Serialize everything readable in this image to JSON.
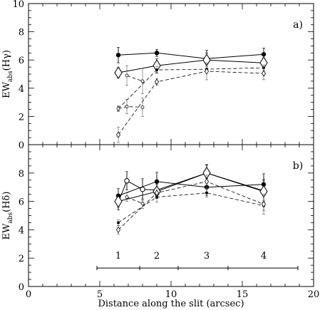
{
  "chart_data": [
    {
      "panel": "a)",
      "type": "line",
      "ylabel_main": "EW",
      "ylabel_sub": "abs",
      "ylabel_tail": "(Hγ)",
      "ylim": [
        0,
        10
      ],
      "yticks": [
        "0",
        "2",
        "4",
        "6",
        "8",
        "10"
      ],
      "xlim": [
        0,
        20
      ],
      "series": [
        {
          "style": "solid",
          "marker": "filled-circle",
          "x": [
            6.3,
            9.0,
            12.5,
            16.5
          ],
          "y": [
            6.35,
            6.5,
            6.1,
            6.4
          ],
          "err": [
            0.55,
            0.25,
            0.4,
            0.45
          ]
        },
        {
          "style": "solid",
          "marker": "open-diamond",
          "x": [
            6.3,
            9.0,
            12.5,
            16.5
          ],
          "y": [
            5.1,
            5.6,
            6.0,
            5.8
          ],
          "err": [
            0.35,
            0.5,
            0.7,
            0.35
          ]
        },
        {
          "style": "dashed",
          "marker": "open-circle-small",
          "x": [
            6.9,
            8.0
          ],
          "y": [
            4.9,
            4.5
          ],
          "err": [
            0.7,
            0.9
          ]
        },
        {
          "style": "dashed",
          "marker": "small-dot",
          "x": [
            6.3,
            9.0,
            12.5,
            16.5
          ],
          "y": [
            2.55,
            5.3,
            5.35,
            5.45
          ],
          "err": [
            0.15,
            0.25,
            0.2,
            0.2
          ]
        },
        {
          "style": "dashed",
          "marker": "open-diamond-small",
          "x": [
            6.3,
            9.0,
            12.5,
            16.5
          ],
          "y": [
            0.7,
            4.45,
            5.2,
            5.05
          ],
          "err": [
            0.55,
            0.25,
            0.6,
            0.45
          ]
        },
        {
          "style": "dashed",
          "marker": "open-circle-small",
          "x": [
            6.3,
            6.9,
            8.0
          ],
          "y": [
            2.55,
            2.7,
            2.65
          ],
          "err": [
            0.2,
            0.5,
            0.65
          ]
        }
      ]
    },
    {
      "panel": "b)",
      "type": "line",
      "xlabel": "Distance along the slit (arcsec)",
      "ylabel_main": "EW",
      "ylabel_sub": "abs",
      "ylabel_tail": "(Hδ)",
      "ylim": [
        0,
        10
      ],
      "yticks": [
        "0",
        "2",
        "4",
        "6",
        "8"
      ],
      "xlim": [
        0,
        20
      ],
      "xticks": [
        "0",
        "5",
        "10",
        "15",
        "20"
      ],
      "series": [
        {
          "style": "solid",
          "marker": "filled-circle",
          "x": [
            6.3,
            9.0,
            12.5,
            16.5
          ],
          "y": [
            6.4,
            7.4,
            7.0,
            7.2
          ],
          "err": [
            0.5,
            0.65,
            0.6,
            0.75
          ]
        },
        {
          "style": "solid",
          "marker": "open-circle",
          "x": [
            6.3,
            6.9,
            8.0,
            9.0,
            12.5,
            16.5
          ],
          "y": [
            5.95,
            7.45,
            6.85,
            6.8,
            8.0,
            6.75
          ],
          "err": [
            0.55,
            0.65,
            0.75,
            0.6,
            0.6,
            0.8
          ]
        },
        {
          "style": "solid",
          "marker": "open-diamond",
          "x": [
            6.3,
            9.0,
            12.5,
            16.5
          ],
          "y": [
            6.0,
            6.7,
            8.0,
            6.7
          ],
          "err": [
            0.4,
            0.5,
            0.55,
            0.75
          ]
        },
        {
          "style": "dashed",
          "marker": "small-dot",
          "x": [
            6.3,
            9.0,
            12.5,
            16.5
          ],
          "y": [
            4.5,
            6.3,
            6.6,
            5.7
          ],
          "err": [
            0.2,
            0.35,
            0.3,
            0.35
          ]
        },
        {
          "style": "dashed",
          "marker": "open-diamond-small",
          "x": [
            6.3,
            9.0,
            12.5,
            16.5
          ],
          "y": [
            4.0,
            6.6,
            7.4,
            5.8
          ],
          "err": [
            0.3,
            0.4,
            0.45,
            0.7
          ]
        },
        {
          "style": "dashed",
          "marker": "open-circle-small",
          "x": [
            6.9,
            8.0
          ],
          "y": [
            6.3,
            5.85
          ],
          "err": [
            0.3,
            0.35
          ]
        }
      ],
      "slit_regions": {
        "labels": [
          "1",
          "2",
          "3",
          "4"
        ],
        "label_x": [
          6.3,
          9.0,
          12.5,
          16.5
        ],
        "label_y": 2.2,
        "bar_y": 1.3,
        "bar_range": [
          4.8,
          18.9
        ],
        "separators": [
          7.8,
          10.5,
          14.0
        ]
      }
    }
  ]
}
